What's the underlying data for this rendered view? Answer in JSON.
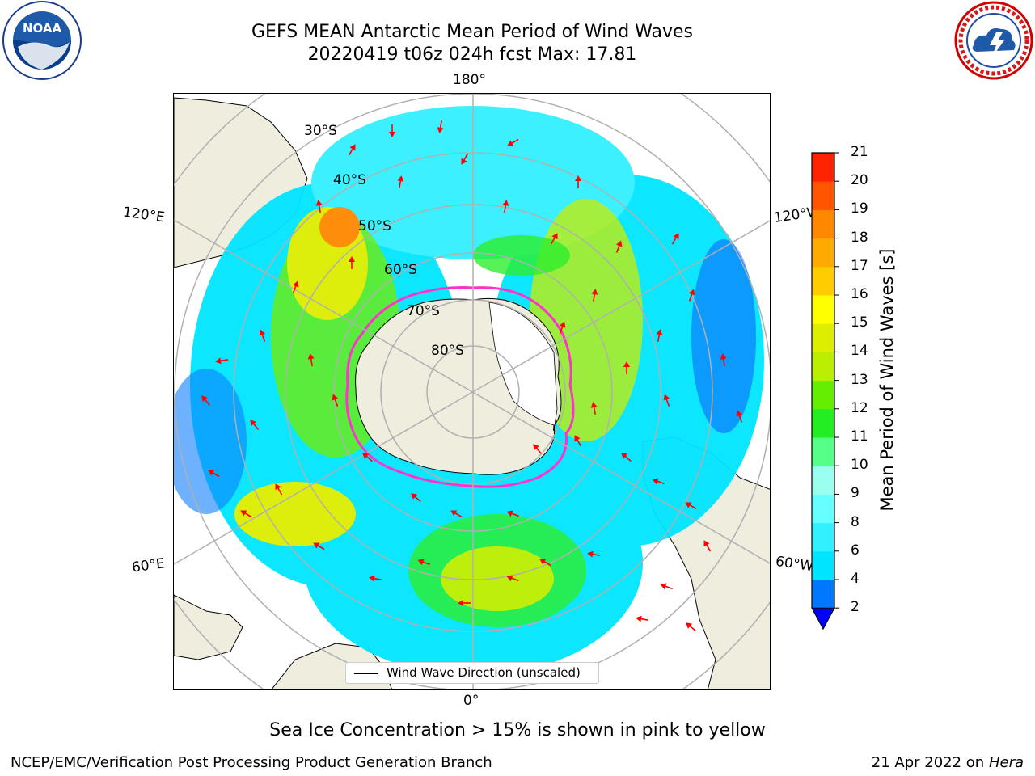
{
  "header": {
    "title_line1": "GEFS MEAN Antarctic Mean Period of Wind Waves",
    "title_line2": "20220419 t06z 024h fcst   Max: 17.81"
  },
  "logos": {
    "left": {
      "icon": "noaa-logo",
      "text": "NOAA",
      "ring_text": "NATIONAL OCEANIC AND ATMOSPHERIC ADMINISTRATION · U.S. DEPARTMENT OF COMMERCE"
    },
    "right": {
      "icon": "nws-logo",
      "ring_text": "NATIONAL WEATHER SERVICE"
    }
  },
  "map": {
    "projection": "south-polar-stereographic",
    "longitude_labels": {
      "top": "180°",
      "bottom": "0°",
      "left_upper": "120°E",
      "left_lower": "60°E",
      "right_upper": "120°W",
      "right_lower": "60°W"
    },
    "latitude_labels": [
      "30°S",
      "40°S",
      "50°S",
      "60°S",
      "70°S",
      "80°S"
    ],
    "legend": {
      "label": "Wind Wave Direction (unscaled)"
    },
    "colors": {
      "land": "#efedde",
      "grid": "#b0b0b0",
      "arrow": "#ff0000",
      "ice_edge": "#ff33cc"
    }
  },
  "colorbar": {
    "label": "Mean Period of Wind Waves [s]",
    "ticks": [
      "2",
      "4",
      "6",
      "8",
      "9",
      "10",
      "11",
      "12",
      "13",
      "14",
      "15",
      "16",
      "17",
      "18",
      "19",
      "20",
      "21"
    ],
    "colors": [
      "#0077ff",
      "#00e5ff",
      "#33f0ff",
      "#66ffff",
      "#99ffee",
      "#55ff88",
      "#22ee22",
      "#66ee00",
      "#bbee00",
      "#ddee00",
      "#ffff00",
      "#ffcc00",
      "#ffaa00",
      "#ff8800",
      "#ff5500",
      "#ff2200"
    ],
    "under_color": "#0000ff",
    "extend": "min"
  },
  "notes": {
    "sea_ice": "Sea Ice Concentration > 15% is shown in pink to yellow"
  },
  "footer": {
    "left": "NCEP/EMC/Verification Post Processing Product Generation Branch",
    "right_prefix": "21 Apr 2022 on ",
    "right_host": "Hera"
  }
}
